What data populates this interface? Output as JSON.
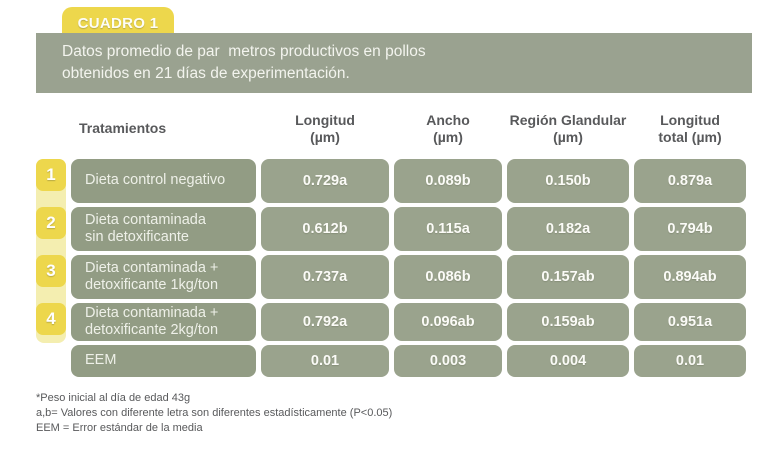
{
  "header": {
    "badge": "CUADRO 1",
    "subtitle": "Datos promedio de par  metros productivos en pollos\nobtenidos en 21 días de experimentación."
  },
  "chart_data": {
    "type": "table",
    "columns": [
      "Tratamientos",
      "Longitud\n(µm)",
      "Ancho\n(µm)",
      "Región Glandular\n(µm)",
      "Longitud\ntotal (µm)"
    ],
    "rows": [
      {
        "num": "1",
        "label": "Dieta control negativo",
        "values": [
          "0.729a",
          "0.089b",
          "0.150b",
          "0.879a"
        ]
      },
      {
        "num": "2",
        "label": "Dieta contaminada\nsin detoxificante",
        "values": [
          "0.612b",
          "0.115a",
          "0.182a",
          "0.794b"
        ]
      },
      {
        "num": "3",
        "label": "Dieta contaminada +\ndetoxificante 1kg/ton",
        "values": [
          "0.737a",
          "0.086b",
          "0.157ab",
          "0.894ab"
        ]
      },
      {
        "num": "4",
        "label": "Dieta contaminada +\ndetoxificante 2kg/ton",
        "values": [
          "0.792a",
          "0.096ab",
          "0.159ab",
          "0.951a"
        ]
      },
      {
        "num": "",
        "label": "EEM",
        "values": [
          "0.01",
          "0.003",
          "0.004",
          "0.01"
        ]
      }
    ]
  },
  "footnotes": [
    "*Peso inicial al día de edad 43g",
    "a,b= Valores con diferente letra son diferentes estadísticamente (P<0.05)",
    "EEM = Error estándar de la media"
  ],
  "colors": {
    "accent_yellow": "#edd74c",
    "pale_yellow": "#f4eeb0",
    "bar_green": "#9aa290",
    "label_green": "#929c84",
    "cell_green": "#9aa38d",
    "header_text": "#58595b"
  }
}
